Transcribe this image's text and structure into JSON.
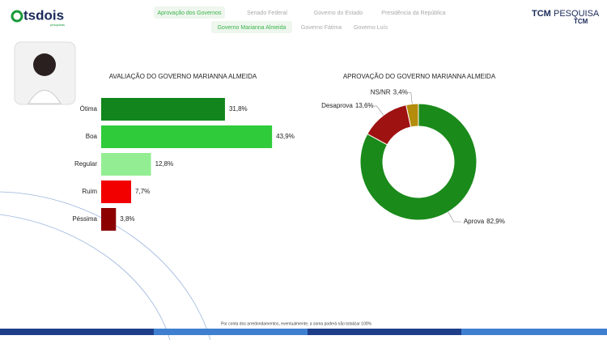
{
  "header": {
    "logo": "tsdois",
    "logo_sub": "pesquisas",
    "tabs_top": [
      "Aprovação dos Governos",
      "Senado Federal",
      "Governo do Estado",
      "Presidência da República"
    ],
    "tabs_sub": [
      "Governo Marianna Almeida",
      "Governo Fátima",
      "Governo Luís"
    ],
    "brand": [
      "TCM",
      "PESQUISA",
      "TCM"
    ]
  },
  "chart_data": [
    {
      "type": "hbar",
      "title": "AVALIAÇÃO DO GOVERNO MARIANNA ALMEIDA",
      "categories": [
        "Ótima",
        "Boa",
        "Regular",
        "Ruim",
        "Péssima"
      ],
      "values": [
        31.8,
        43.9,
        12.8,
        7.7,
        3.8
      ],
      "value_labels": [
        "31,8%",
        "43,9%",
        "12,8%",
        "7,7%",
        "3,8%"
      ],
      "colors": [
        "#12861c",
        "#2fcb3b",
        "#93ee93",
        "#f20000",
        "#8c0000"
      ]
    },
    {
      "type": "donut",
      "title": "APROVAÇÃO DO GOVERNO MARIANNA ALMEIDA",
      "categories": [
        "Aprova",
        "Desaprova",
        "NS/NR"
      ],
      "values": [
        82.9,
        13.6,
        3.4
      ],
      "value_labels": [
        "82,9%",
        "13,6%",
        "3,4%"
      ],
      "colors": [
        "#1a8a1a",
        "#9e1212",
        "#b38c0c"
      ]
    }
  ],
  "footer": {
    "note": "Por conta dos arredondamentos, eventualmente, a soma poderá não totalizar 100%"
  }
}
